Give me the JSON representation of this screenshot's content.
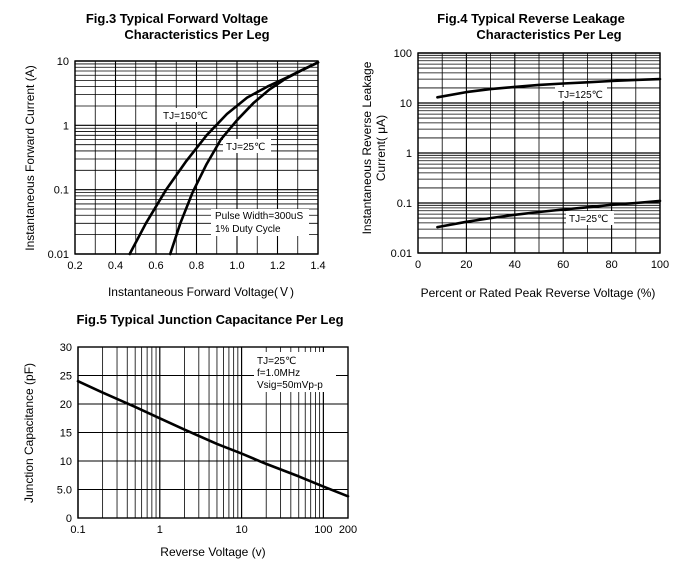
{
  "chart_data": [
    {
      "type": "line",
      "title": "Fig.3 Typical Forward Voltage",
      "subtitle": "Characteristics Per Leg",
      "xlabel": "Instantaneous Forward Voltage(Ｖ)",
      "ylabel": "Instantaneous Forward Current (A)",
      "xlim": [
        0.2,
        1.4
      ],
      "ylim": [
        0.01,
        10
      ],
      "yscale": "log",
      "x_ticks": [
        "0.2",
        "0.4",
        "0.6",
        "0.8",
        "1.0",
        "1.2",
        "1.4"
      ],
      "y_ticks": [
        "0.01",
        "0.1",
        "1",
        "10"
      ],
      "series": [
        {
          "name": "TJ=150℃",
          "x": [
            0.47,
            0.55,
            0.65,
            0.75,
            0.85,
            0.95,
            1.05,
            1.15,
            1.25,
            1.32,
            1.4
          ],
          "y": [
            0.01,
            0.03,
            0.1,
            0.28,
            0.7,
            1.5,
            2.7,
            4.0,
            5.6,
            7.2,
            9.5
          ]
        },
        {
          "name": "TJ=25℃",
          "x": [
            0.67,
            0.72,
            0.78,
            0.85,
            0.92,
            1.0,
            1.08,
            1.16,
            1.24,
            1.32,
            1.4
          ],
          "y": [
            0.01,
            0.03,
            0.09,
            0.25,
            0.6,
            1.2,
            2.2,
            3.6,
            5.3,
            7.2,
            9.5
          ]
        }
      ],
      "annotations": [
        "TJ=150℃",
        "TJ=25℃",
        "Pulse Width=300uS",
        "1% Duty Cycle"
      ]
    },
    {
      "type": "line",
      "title": "Fig.4 Typical Reverse Leakage",
      "subtitle": "Characteristics Per Leg",
      "xlabel": "Percent or Rated Peak Reverse Voltage (%)",
      "ylabel_lines": [
        "Instantaneous Reverse Leakage",
        "Current( μA)"
      ],
      "xlim": [
        0,
        100
      ],
      "ylim": [
        0.01,
        100
      ],
      "yscale": "log",
      "x_ticks": [
        "0",
        "20",
        "40",
        "60",
        "80",
        "100"
      ],
      "y_ticks": [
        "0.01",
        "0.1",
        "1",
        "10",
        "100"
      ],
      "series": [
        {
          "name": "TJ=125℃",
          "x": [
            8,
            20,
            30,
            40,
            50,
            60,
            70,
            80,
            90,
            100
          ],
          "y": [
            13,
            16.5,
            19,
            21,
            23,
            24.5,
            26,
            27.5,
            29,
            30
          ]
        },
        {
          "name": "TJ=25℃",
          "x": [
            8,
            20,
            30,
            40,
            50,
            60,
            70,
            80,
            90,
            100
          ],
          "y": [
            0.033,
            0.042,
            0.05,
            0.058,
            0.066,
            0.074,
            0.082,
            0.092,
            0.1,
            0.11
          ]
        }
      ],
      "annotations": [
        "TJ=125℃",
        "TJ=25℃"
      ]
    },
    {
      "type": "line",
      "title": "Fig.5 Typical Junction Capacitance Per Leg",
      "xlabel": "Reverse Voltage (v)",
      "ylabel": "Junction Capacitance (pF)",
      "xlim": [
        0.1,
        200
      ],
      "xscale": "log",
      "ylim": [
        0,
        30
      ],
      "x_ticks": [
        "0.1",
        "1",
        "10",
        "100",
        "200"
      ],
      "y_ticks": [
        "0",
        "5.0",
        "10",
        "15",
        "20",
        "25",
        "30"
      ],
      "series": [
        {
          "name": "TJ=25℃",
          "x": [
            0.1,
            0.2,
            0.5,
            1,
            2,
            5,
            10,
            20,
            50,
            100,
            200
          ],
          "y": [
            24,
            22,
            19.5,
            17.5,
            15.5,
            13,
            11.3,
            9.5,
            7.3,
            5.5,
            3.8
          ]
        }
      ],
      "annotations": [
        "TJ=25℃",
        "f=1.0MHz",
        "Vsig=50mVp-p"
      ]
    }
  ]
}
